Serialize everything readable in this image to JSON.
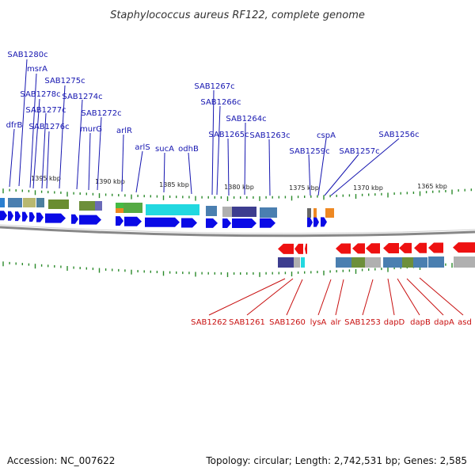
{
  "title": "Staphylococcus aureus RF122, complete genome",
  "footer": {
    "accession": "Accession: NC_007622",
    "summary": "Topology: circular; Length: 2,742,531 bp; Genes: 2,585"
  },
  "kbp_ticks": [
    {
      "text": "1395 kbp"
    },
    {
      "text": "1390 kbp"
    },
    {
      "text": "1385 kbp"
    },
    {
      "text": "1380 kbp"
    },
    {
      "text": "1375 kbp"
    },
    {
      "text": "1370 kbp"
    },
    {
      "text": "1365 kbp"
    }
  ],
  "top_labels": [
    {
      "text": "SAB1280c"
    },
    {
      "text": "msrA"
    },
    {
      "text": "SAB1275c"
    },
    {
      "text": "SAB1278c"
    },
    {
      "text": "SAB1274c"
    },
    {
      "text": "SAB1277c"
    },
    {
      "text": "SAB1272c"
    },
    {
      "text": "dfrB"
    },
    {
      "text": "SAB1276c"
    },
    {
      "text": "murG"
    },
    {
      "text": "arlR"
    },
    {
      "text": "arlS"
    },
    {
      "text": "sucA"
    },
    {
      "text": "odhB"
    },
    {
      "text": "SAB1267c"
    },
    {
      "text": "SAB1266c"
    },
    {
      "text": "SAB1264c"
    },
    {
      "text": "SAB1265c"
    },
    {
      "text": "SAB1263c"
    },
    {
      "text": "cspA"
    },
    {
      "text": "SAB1256c"
    },
    {
      "text": "SAB1259c"
    },
    {
      "text": "SAB1257c"
    }
  ],
  "bottom_labels": [
    {
      "text": "SAB1262"
    },
    {
      "text": "SAB1261"
    },
    {
      "text": "SAB1260"
    },
    {
      "text": "lysA"
    },
    {
      "text": "alr"
    },
    {
      "text": "SAB1253"
    },
    {
      "text": "dapD"
    },
    {
      "text": "dapB"
    },
    {
      "text": "dapA"
    },
    {
      "text": "asd"
    }
  ],
  "colors": {
    "forward_gene": "#0a0ae6",
    "reverse_gene": "#ee1111",
    "top_label": "#1515b0",
    "bottom_label": "#c81010",
    "backbone": "#888888",
    "tick": "#2a8a2a"
  }
}
